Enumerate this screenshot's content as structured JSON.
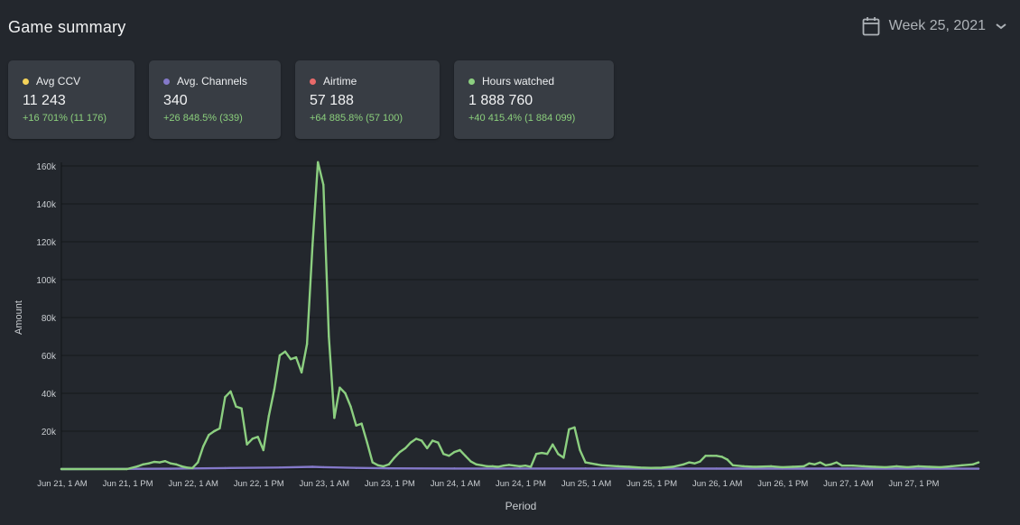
{
  "header": {
    "title": "Game summary",
    "week_label": "Week 25, 2021",
    "calendar_icon": "calendar-icon",
    "chevron_icon": "chevron-down-icon"
  },
  "stats": [
    {
      "label": "Avg CCV",
      "value": "11 243",
      "delta": "+16 701% (11 176)",
      "color": "#f5d35a"
    },
    {
      "label": "Avg. Channels",
      "value": "340",
      "delta": "+26 848.5% (339)",
      "color": "#8479c9"
    },
    {
      "label": "Airtime",
      "value": "57 188",
      "delta": "+64 885.8% (57 100)",
      "color": "#e86a6a"
    },
    {
      "label": "Hours watched",
      "value": "1 888 760",
      "delta": "+40 415.4% (1 884 099)",
      "color": "#8ccf80"
    }
  ],
  "chart_data": {
    "type": "line",
    "xlabel": "Period",
    "ylabel": "Amount",
    "ylim": [
      0,
      160000
    ],
    "yticks": [
      0,
      20000,
      40000,
      60000,
      80000,
      100000,
      120000,
      140000,
      160000
    ],
    "ytick_labels": [
      "",
      "20k",
      "40k",
      "60k",
      "80k",
      "100k",
      "120k",
      "140k",
      "160k"
    ],
    "xlim": [
      0,
      168
    ],
    "xtick_labels": [
      "Jun 21, 1 AM",
      "Jun 21, 1 PM",
      "Jun 22, 1 AM",
      "Jun 22, 1 PM",
      "Jun 23, 1 AM",
      "Jun 23, 1 PM",
      "Jun 24, 1 AM",
      "Jun 24, 1 PM",
      "Jun 25, 1 AM",
      "Jun 25, 1 PM",
      "Jun 26, 1 AM",
      "Jun 26, 1 PM",
      "Jun 27, 1 AM",
      "Jun 27, 1 PM"
    ],
    "xtick_hours": [
      0,
      12,
      24,
      36,
      48,
      60,
      72,
      84,
      96,
      108,
      120,
      132,
      144,
      156
    ],
    "grid": true,
    "legend": "none",
    "series": [
      {
        "name": "Hours watched",
        "color": "#8ccf80",
        "points": [
          [
            0,
            0
          ],
          [
            12,
            0
          ],
          [
            14,
            1500
          ],
          [
            15,
            2500
          ],
          [
            16,
            3000
          ],
          [
            17,
            3800
          ],
          [
            18,
            3500
          ],
          [
            19,
            4200
          ],
          [
            20,
            3000
          ],
          [
            21,
            2500
          ],
          [
            22,
            1500
          ],
          [
            23,
            800
          ],
          [
            24,
            500
          ],
          [
            25,
            3500
          ],
          [
            26,
            12000
          ],
          [
            27,
            18000
          ],
          [
            28,
            20000
          ],
          [
            29,
            21500
          ],
          [
            30,
            38000
          ],
          [
            31,
            41000
          ],
          [
            32,
            33000
          ],
          [
            33,
            32000
          ],
          [
            34,
            13000
          ],
          [
            35,
            16000
          ],
          [
            36,
            17000
          ],
          [
            37,
            10000
          ],
          [
            38,
            28000
          ],
          [
            39,
            42000
          ],
          [
            40,
            60000
          ],
          [
            41,
            62000
          ],
          [
            42,
            58000
          ],
          [
            43,
            59000
          ],
          [
            44,
            51000
          ],
          [
            45,
            66000
          ],
          [
            46,
            118000
          ],
          [
            47,
            162000
          ],
          [
            48,
            150000
          ],
          [
            49,
            70000
          ],
          [
            50,
            27000
          ],
          [
            51,
            43000
          ],
          [
            52,
            40000
          ],
          [
            53,
            33000
          ],
          [
            54,
            23000
          ],
          [
            55,
            24000
          ],
          [
            56,
            14000
          ],
          [
            57,
            3500
          ],
          [
            58,
            2000
          ],
          [
            59,
            1500
          ],
          [
            60,
            2500
          ],
          [
            61,
            6000
          ],
          [
            62,
            9000
          ],
          [
            63,
            11000
          ],
          [
            64,
            14000
          ],
          [
            65,
            16000
          ],
          [
            66,
            15000
          ],
          [
            67,
            11000
          ],
          [
            68,
            15000
          ],
          [
            69,
            14000
          ],
          [
            70,
            8000
          ],
          [
            71,
            7000
          ],
          [
            72,
            9000
          ],
          [
            73,
            10000
          ],
          [
            74,
            7000
          ],
          [
            75,
            4000
          ],
          [
            76,
            2500
          ],
          [
            77,
            2000
          ],
          [
            78,
            1500
          ],
          [
            79,
            1500
          ],
          [
            80,
            1200
          ],
          [
            81,
            1800
          ],
          [
            82,
            2200
          ],
          [
            83,
            1800
          ],
          [
            84,
            1500
          ],
          [
            85,
            1800
          ],
          [
            86,
            1200
          ],
          [
            87,
            8000
          ],
          [
            88,
            8500
          ],
          [
            89,
            8000
          ],
          [
            90,
            13000
          ],
          [
            91,
            8000
          ],
          [
            92,
            6000
          ],
          [
            93,
            21000
          ],
          [
            94,
            22000
          ],
          [
            95,
            10000
          ],
          [
            96,
            3500
          ],
          [
            97,
            3000
          ],
          [
            98,
            2500
          ],
          [
            99,
            2000
          ],
          [
            100,
            1800
          ],
          [
            102,
            1500
          ],
          [
            104,
            1200
          ],
          [
            106,
            800
          ],
          [
            108,
            600
          ],
          [
            110,
            700
          ],
          [
            112,
            1200
          ],
          [
            114,
            2500
          ],
          [
            115,
            3500
          ],
          [
            116,
            3000
          ],
          [
            117,
            4000
          ],
          [
            118,
            7000
          ],
          [
            119,
            7000
          ],
          [
            120,
            7000
          ],
          [
            121,
            6500
          ],
          [
            122,
            5000
          ],
          [
            123,
            2000
          ],
          [
            125,
            1500
          ],
          [
            127,
            1200
          ],
          [
            130,
            1500
          ],
          [
            132,
            1000
          ],
          [
            134,
            1200
          ],
          [
            136,
            1500
          ],
          [
            137,
            3000
          ],
          [
            138,
            2500
          ],
          [
            139,
            3500
          ],
          [
            140,
            2000
          ],
          [
            141,
            2500
          ],
          [
            142,
            3500
          ],
          [
            143,
            1800
          ],
          [
            145,
            1800
          ],
          [
            147,
            1500
          ],
          [
            149,
            1200
          ],
          [
            151,
            1000
          ],
          [
            153,
            1500
          ],
          [
            155,
            1000
          ],
          [
            157,
            1500
          ],
          [
            159,
            1200
          ],
          [
            161,
            1000
          ],
          [
            163,
            1500
          ],
          [
            165,
            2000
          ],
          [
            167,
            2500
          ],
          [
            168,
            3500
          ]
        ]
      },
      {
        "name": "Avg. Channels",
        "color": "#8479c9",
        "points": [
          [
            0,
            0
          ],
          [
            20,
            200
          ],
          [
            30,
            500
          ],
          [
            40,
            800
          ],
          [
            46,
            1200
          ],
          [
            48,
            1000
          ],
          [
            54,
            600
          ],
          [
            60,
            400
          ],
          [
            72,
            300
          ],
          [
            84,
            300
          ],
          [
            96,
            300
          ],
          [
            108,
            250
          ],
          [
            120,
            250
          ],
          [
            132,
            250
          ],
          [
            144,
            250
          ],
          [
            156,
            250
          ],
          [
            168,
            200
          ]
        ]
      }
    ]
  }
}
